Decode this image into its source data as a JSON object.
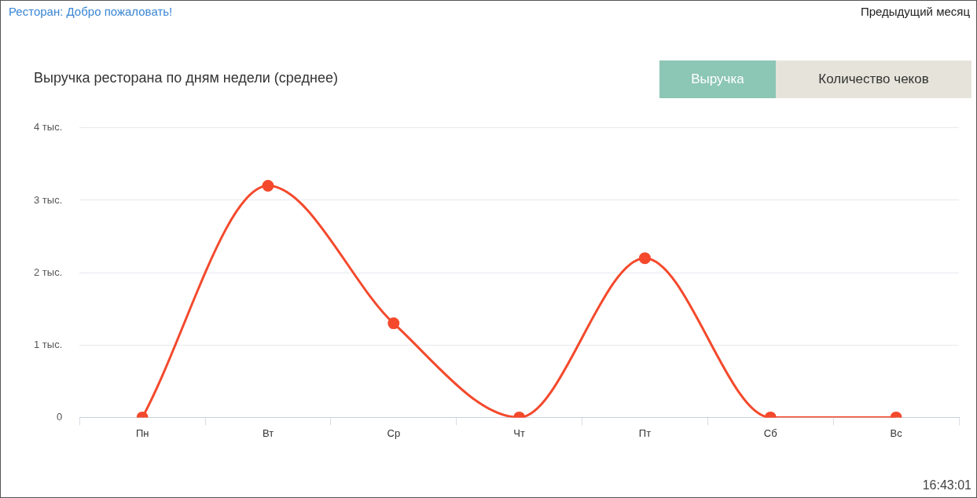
{
  "chart_data": {
    "type": "line",
    "title": "Выручка ресторана по дням недели (среднее)",
    "categories": [
      "Пн",
      "Вт",
      "Ср",
      "Чт",
      "Пт",
      "Сб",
      "Вс"
    ],
    "series": [
      {
        "color": "#f4492c",
        "values": [
          0,
          3.2,
          1.3,
          0,
          2.2,
          0,
          0
        ]
      }
    ],
    "ylim": [
      0,
      4
    ],
    "yticks": [
      0,
      {
        "value": 1,
        "label": "1 тыс."
      },
      {
        "value": 2,
        "label": "2 тыс."
      },
      {
        "value": 3,
        "label": "3 тыс."
      },
      {
        "value": 4,
        "label": "4 тыс."
      }
    ],
    "grid": "y",
    "legend": false,
    "marker": "circle",
    "line_style": "solid",
    "annotations": [
      "Ресторан: Добро пожаловать!",
      "Предыдущий месяц",
      "Выручка",
      "Количество чеков",
      "16:43:01"
    ]
  }
}
